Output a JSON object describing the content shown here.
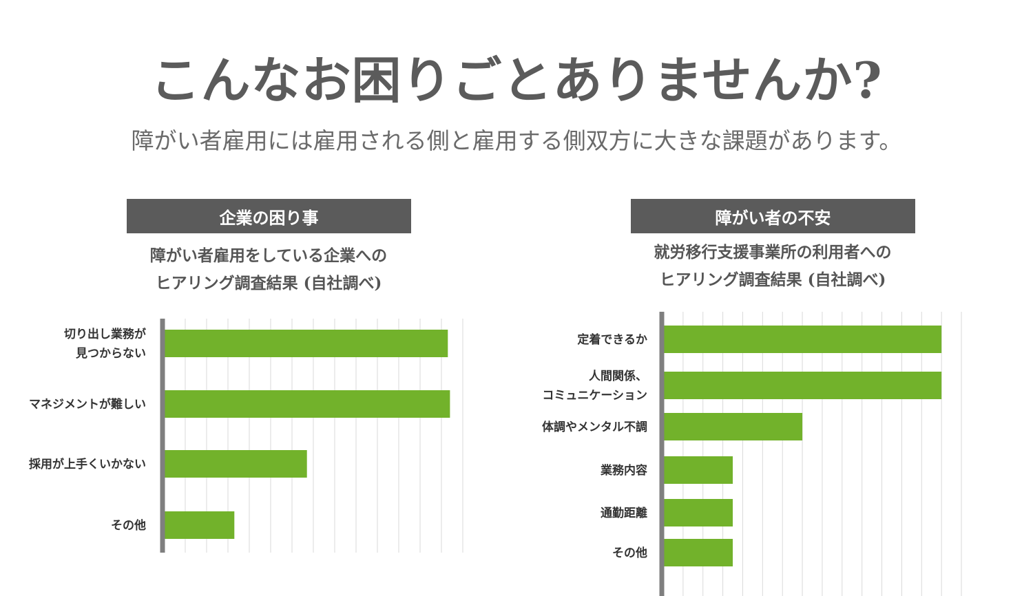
{
  "title": "こんなお困りごとありませんか?",
  "subtitle": "障がい者雇用には雇用される側と雇用する側双方に大きな課題があります。",
  "colors": {
    "bar": "#72b22b",
    "header_bg": "#5b5b5b",
    "axis": "#7f7f7f",
    "grid": "#d9d9d9"
  },
  "left_panel": {
    "header": "企業の困り事",
    "caption_line1": "障がい者雇用をしている企業への",
    "caption_line2": "ヒアリング調査結果 (自社調べ)"
  },
  "right_panel": {
    "header": "障がい者の不安",
    "caption_line1": "就労移行支援事業所の利用者への",
    "caption_line2": "ヒアリング調査結果 (自社調べ)"
  },
  "chart_data": [
    {
      "type": "bar",
      "orientation": "horizontal",
      "categories": [
        [
          "切り出し業務が",
          "見つからない"
        ],
        [
          "マネジメントが難しい"
        ],
        [
          "採用が上手くいかない"
        ],
        [
          "その他"
        ]
      ],
      "values": [
        13.3,
        13.4,
        6.7,
        3.3
      ],
      "xlim": [
        0,
        14
      ],
      "grid": true,
      "axis_labels_shown": false
    },
    {
      "type": "bar",
      "orientation": "horizontal",
      "categories": [
        [
          "定着できるか"
        ],
        [
          "人間関係、",
          "コミュニケーション"
        ],
        [
          "体調やメンタル不調"
        ],
        [
          "業務内容"
        ],
        [
          "通勤距離"
        ],
        [
          "その他"
        ]
      ],
      "values": [
        14,
        14,
        7,
        3.5,
        3.5,
        3.5
      ],
      "xlim": [
        0,
        15
      ],
      "grid": true,
      "axis_labels_shown": false
    }
  ]
}
